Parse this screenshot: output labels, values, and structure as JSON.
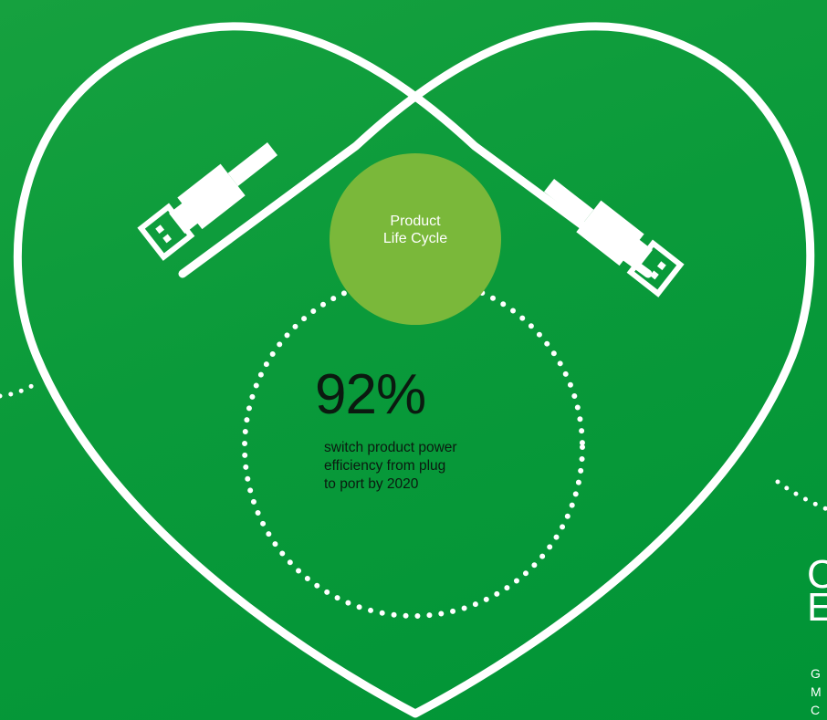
{
  "colors": {
    "background": "#0a9a3a",
    "heart_outline": "#ffffff",
    "bubble": "#7ab83a",
    "dots": "#ffffff",
    "stat_text": "#0b1a10"
  },
  "bubble": {
    "label_line1": "Product",
    "label_line2": "Life Cycle"
  },
  "stat": {
    "value": "92%",
    "desc_line1": "switch product power",
    "desc_line2": "efficiency from plug",
    "desc_line3": "to port by 2020"
  },
  "edge_text": {
    "title_line1": "C",
    "title_line2": "E",
    "sub_line1": "G",
    "sub_line2": "M",
    "sub_line3": "C"
  },
  "icons": {
    "left_connector": "usb-plug-icon",
    "right_connector": "usb-plug-icon"
  }
}
